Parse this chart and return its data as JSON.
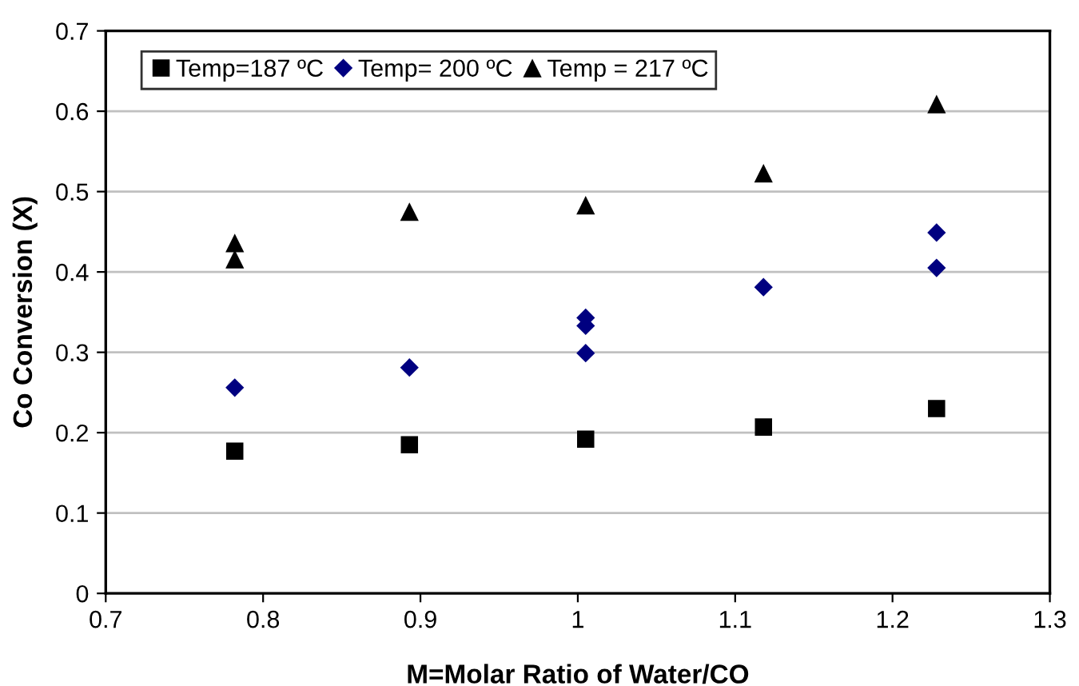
{
  "chart_data": {
    "type": "scatter",
    "xlabel": "M=Molar Ratio of Water/CO",
    "ylabel": "Co Conversion (X)",
    "xlim": [
      0.7,
      1.3
    ],
    "xticks": [
      0.7,
      0.8,
      0.9,
      1,
      1.1,
      1.2,
      1.3
    ],
    "ylim": [
      0,
      0.7
    ],
    "yticks": [
      0,
      0.1,
      0.2,
      0.3,
      0.4,
      0.5,
      0.6,
      0.7
    ],
    "grid": "y",
    "legend": "top left",
    "series": [
      {
        "name": "Temp=187 ºC",
        "color": "#000000",
        "marker": "square",
        "x": [
          0.782,
          0.893,
          1.005,
          1.118,
          1.228
        ],
        "values": [
          0.177,
          0.185,
          0.192,
          0.207,
          0.23
        ]
      },
      {
        "name": "Temp= 200 ºC",
        "color": "#000080",
        "marker": "diamond",
        "x": [
          0.782,
          0.893,
          1.005,
          1.005,
          1.005,
          1.118,
          1.228,
          1.228
        ],
        "values": [
          0.256,
          0.281,
          0.343,
          0.333,
          0.299,
          0.381,
          0.449,
          0.405
        ]
      },
      {
        "name": "Temp = 217 ºC",
        "color": "#000000",
        "marker": "triangle",
        "x": [
          0.782,
          0.782,
          0.893,
          1.005,
          1.118,
          1.228
        ],
        "values": [
          0.436,
          0.416,
          0.475,
          0.483,
          0.523,
          0.609
        ]
      }
    ]
  }
}
